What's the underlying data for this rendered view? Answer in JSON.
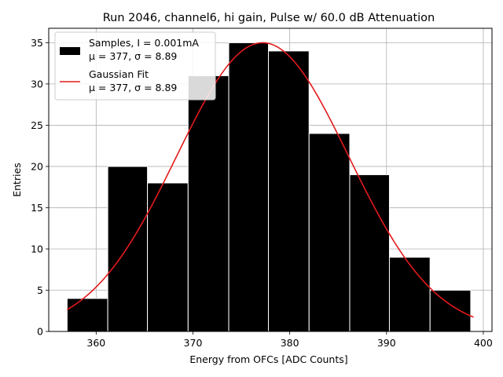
{
  "chart_data": {
    "type": "histogram",
    "title": "Run 2046, channel6, hi gain, Pulse w/ 60.0 dB Attenuation",
    "xlabel": "Energy from OFCs [ADC Counts]",
    "ylabel": "Entries",
    "xlim": [
      355.1,
      400.9
    ],
    "ylim": [
      0,
      36.75
    ],
    "grid": true,
    "xticks": [
      360,
      370,
      380,
      390,
      400
    ],
    "yticks": [
      0,
      5,
      10,
      15,
      20,
      25,
      30,
      35
    ],
    "bins": [
      {
        "start": 357.0,
        "end": 361.2,
        "count": 4
      },
      {
        "start": 361.2,
        "end": 365.3,
        "count": 20
      },
      {
        "start": 365.3,
        "end": 369.5,
        "count": 18
      },
      {
        "start": 369.5,
        "end": 373.7,
        "count": 31
      },
      {
        "start": 373.7,
        "end": 377.8,
        "count": 35
      },
      {
        "start": 377.8,
        "end": 382.0,
        "count": 34
      },
      {
        "start": 382.0,
        "end": 386.2,
        "count": 24
      },
      {
        "start": 386.2,
        "end": 390.3,
        "count": 19
      },
      {
        "start": 390.3,
        "end": 394.5,
        "count": 9
      },
      {
        "start": 394.5,
        "end": 398.7,
        "count": 5
      }
    ],
    "fit": {
      "type": "gaussian",
      "amplitude": 35.0,
      "mean": 377.2,
      "sigma": 8.89,
      "x_start": 357.0,
      "x_end": 399.0
    },
    "legend": {
      "position": "upper-left",
      "entries": [
        {
          "kind": "bar",
          "label_line1": "Samples, I = 0.001mA",
          "label_line2": "μ = 377, σ = 8.89"
        },
        {
          "kind": "line",
          "label_line1": "Gaussian Fit",
          "label_line2": "μ = 377, σ = 8.89"
        }
      ]
    },
    "colors": {
      "bars": "#000000",
      "bar_edge": "#ffffff",
      "fit_line": "#e41a1c",
      "grid": "#b0b0b0"
    }
  }
}
